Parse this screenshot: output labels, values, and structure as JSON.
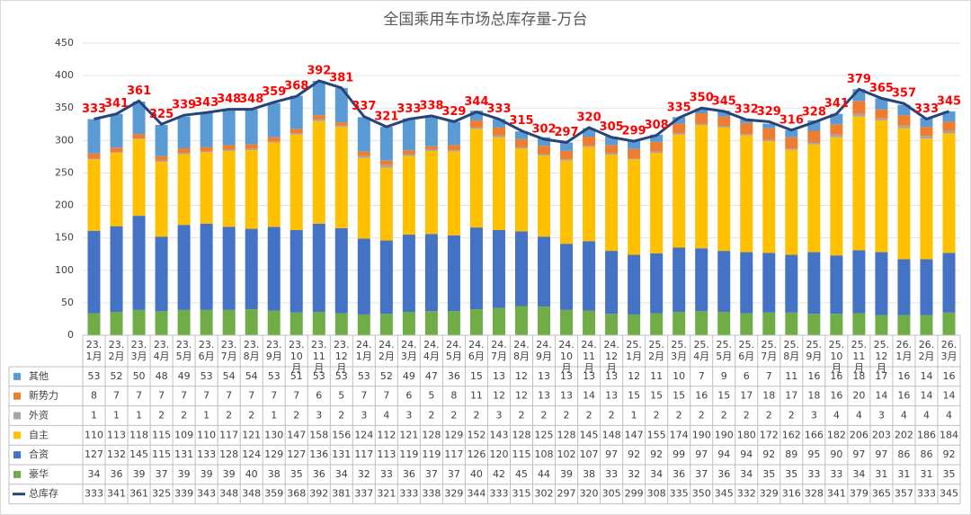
{
  "chart_data": {
    "type": "bar",
    "stacked": true,
    "title": "全国乘用车市场总库存量-万台",
    "categories": [
      "23.1月",
      "23.2月",
      "23.3月",
      "23.4月",
      "23.5月",
      "23.6月",
      "23.7月",
      "23.8月",
      "23.9月",
      "23.10月",
      "23.11月",
      "23.12月",
      "24.1月",
      "24.2月",
      "24.3月",
      "24.4月",
      "24.5月",
      "24.6月",
      "24.7月",
      "24.8月",
      "24.9月",
      "24.10月",
      "24.11月",
      "24.12月",
      "25.1月",
      "25.2月",
      "25.3月",
      "25.4月",
      "25.5月",
      "25.6月",
      "25.7月",
      "25.8月",
      "25.9月",
      "25.10月",
      "25.11月",
      "25.12月",
      "26.1月",
      "26.2月",
      "26.3月"
    ],
    "series": [
      {
        "name": "其他",
        "color": "#5b9bd5",
        "values": [
          53,
          52,
          50,
          48,
          49,
          53,
          54,
          54,
          53,
          51,
          53,
          53,
          53,
          52,
          49,
          47,
          36,
          15,
          13,
          12,
          13,
          13,
          13,
          13,
          12,
          11,
          10,
          7,
          9,
          6,
          7,
          11,
          16,
          16,
          18,
          17,
          16,
          14,
          16
        ]
      },
      {
        "name": "新势力",
        "color": "#ed7d31",
        "values": [
          8,
          7,
          7,
          7,
          7,
          7,
          7,
          7,
          7,
          7,
          6,
          5,
          7,
          7,
          6,
          5,
          8,
          11,
          12,
          12,
          13,
          13,
          14,
          13,
          15,
          15,
          15,
          16,
          15,
          17,
          18,
          17,
          18,
          16,
          20,
          14,
          16,
          14,
          14
        ]
      },
      {
        "name": "外资",
        "color": "#a5a5a5",
        "values": [
          1,
          1,
          1,
          2,
          2,
          1,
          2,
          2,
          1,
          2,
          3,
          2,
          3,
          4,
          3,
          2,
          2,
          2,
          3,
          2,
          2,
          2,
          2,
          2,
          1,
          2,
          2,
          2,
          2,
          2,
          2,
          2,
          3,
          4,
          4,
          3,
          4,
          4,
          4
        ]
      },
      {
        "name": "自主",
        "color": "#ffc000",
        "values": [
          110,
          113,
          118,
          115,
          109,
          110,
          117,
          121,
          130,
          147,
          158,
          156,
          124,
          112,
          121,
          128,
          129,
          152,
          143,
          128,
          125,
          128,
          145,
          148,
          147,
          155,
          174,
          190,
          190,
          180,
          172,
          162,
          166,
          182,
          206,
          203,
          202,
          186,
          184
        ]
      },
      {
        "name": "合资",
        "color": "#4472c4",
        "values": [
          127,
          132,
          145,
          115,
          131,
          133,
          128,
          124,
          129,
          127,
          136,
          131,
          117,
          113,
          119,
          119,
          117,
          126,
          120,
          115,
          108,
          102,
          107,
          97,
          92,
          92,
          99,
          97,
          94,
          94,
          92,
          89,
          95,
          90,
          97,
          97,
          86,
          86,
          92
        ]
      },
      {
        "name": "豪华",
        "color": "#70ad47",
        "values": [
          34,
          36,
          39,
          37,
          39,
          39,
          39,
          40,
          38,
          35,
          36,
          34,
          32,
          33,
          36,
          37,
          37,
          40,
          42,
          45,
          44,
          39,
          38,
          33,
          32,
          34,
          36,
          37,
          36,
          34,
          35,
          35,
          33,
          33,
          34,
          31,
          31,
          31,
          35
        ]
      },
      {
        "name": "总库存",
        "color": "#264478",
        "type": "line",
        "label_color": "#ff0000",
        "values": [
          333,
          341,
          361,
          325,
          339,
          343,
          348,
          348,
          359,
          368,
          392,
          381,
          337,
          321,
          333,
          338,
          329,
          344,
          333,
          315,
          302,
          297,
          320,
          305,
          299,
          308,
          335,
          350,
          345,
          332,
          329,
          316,
          328,
          341,
          379,
          365,
          357,
          333,
          345
        ]
      }
    ],
    "ylim": [
      0,
      450
    ],
    "yticks": [
      0,
      50,
      100,
      150,
      200,
      250,
      300,
      350,
      400,
      450
    ],
    "grid": true,
    "data_table": true
  }
}
